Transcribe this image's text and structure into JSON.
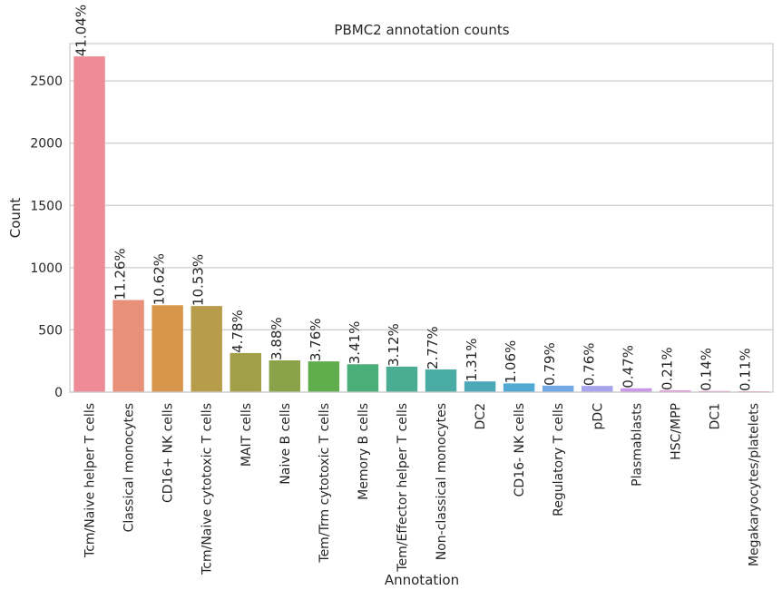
{
  "chart_data": {
    "type": "bar",
    "title": "PBMC2 annotation counts",
    "xlabel": "Annotation",
    "ylabel": "Count",
    "ylim": [
      0,
      2800
    ],
    "yticks": [
      0,
      500,
      1000,
      1500,
      2000,
      2500
    ],
    "grid": true,
    "categories": [
      "Tcm/Naive helper T cells",
      "Classical monocytes",
      "CD16+ NK cells",
      "Tcm/Naive cytotoxic T cells",
      "MAIT cells",
      "Naive B cells",
      "Tem/Trm cytotoxic T cells",
      "Memory B cells",
      "Tem/Effector helper T cells",
      "Non-classical monocytes",
      "DC2",
      "CD16- NK cells",
      "Regulatory T cells",
      "pDC",
      "Plasmablasts",
      "HSC/MPP",
      "DC1",
      "Megakaryocytes/platelets"
    ],
    "values": [
      2697,
      740,
      698,
      692,
      314,
      255,
      247,
      224,
      205,
      182,
      86,
      70,
      52,
      50,
      31,
      14,
      9,
      7
    ],
    "labels": [
      "41.04%",
      "11.26%",
      "10.62%",
      "10.53%",
      "4.78%",
      "3.88%",
      "3.76%",
      "3.41%",
      "3.12%",
      "2.77%",
      "1.31%",
      "1.06%",
      "0.79%",
      "0.76%",
      "0.47%",
      "0.21%",
      "0.14%",
      "0.11%"
    ],
    "colors": [
      "#ee8b97",
      "#e8907a",
      "#d8964c",
      "#b79c4b",
      "#a19f48",
      "#8aa34a",
      "#5fad4c",
      "#4aae78",
      "#49ac93",
      "#4aaaa4",
      "#4ba8b7",
      "#52a9d3",
      "#72a8e5",
      "#a6a4ec",
      "#cb98e7",
      "#e790db",
      "#eb8cc5",
      "#ec8ab0"
    ]
  }
}
